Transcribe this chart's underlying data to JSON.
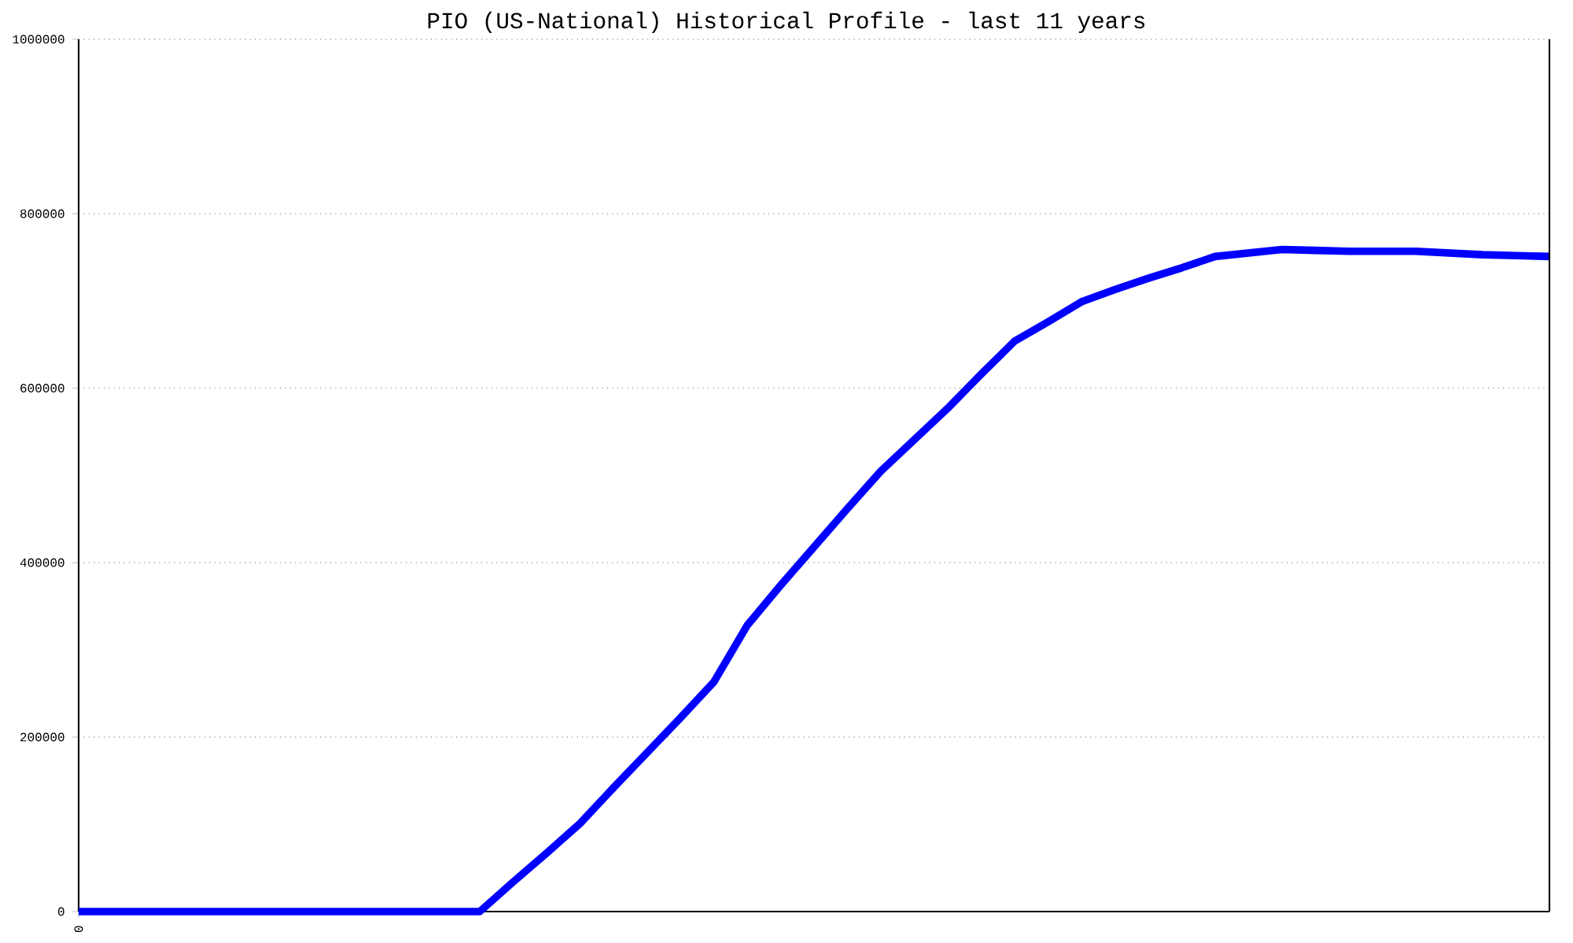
{
  "chart_data": {
    "type": "line",
    "title": "PIO (US-National) Historical Profile - last 11 years",
    "categories": [
      "0",
      null,
      null,
      null,
      null,
      null,
      null,
      null,
      null,
      null,
      null,
      null,
      null,
      null,
      null,
      null,
      null,
      null,
      null,
      null,
      null,
      null,
      null,
      null,
      null,
      null,
      null,
      null,
      null,
      null,
      null,
      null,
      null,
      null,
      null,
      null,
      null,
      null,
      null,
      null,
      null,
      null,
      null,
      null,
      null
    ],
    "series": [
      {
        "color": "#0000ff",
        "values": [
          0,
          0,
          0,
          0,
          0,
          0,
          0,
          0,
          0,
          0,
          0,
          0,
          0,
          34000,
          67000,
          101000,
          142000,
          182000,
          222000,
          263000,
          328000,
          374000,
          418000,
          462000,
          505000,
          541000,
          577000,
          616000,
          654000,
          676000,
          699000,
          713000,
          726000,
          738000,
          751000,
          755000,
          759000,
          758000,
          757000,
          757000,
          757000,
          755000,
          753000,
          752000,
          751000
        ]
      }
    ],
    "ylim": [
      0,
      1000000
    ],
    "yticks": [
      0,
      200000,
      400000,
      600000,
      800000,
      1000000
    ],
    "grid": "y",
    "marker": "none",
    "line_style": "solid"
  }
}
